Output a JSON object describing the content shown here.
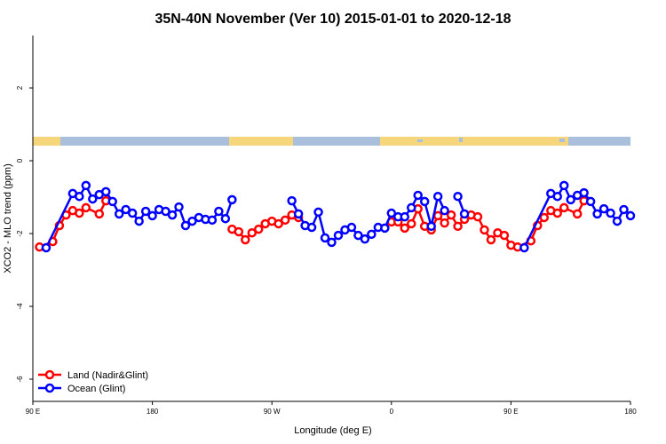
{
  "chart_data": {
    "type": "line",
    "title": "35N-40N November (Ver 10)   2015-01-01 to 2020-12-18",
    "x_label": "Longitude (deg E)",
    "y_label": "XCO2 - MLO trend (ppm)",
    "xlim": [
      90,
      540
    ],
    "xticks": [
      {
        "value": 90,
        "label": "90 E"
      },
      180,
      {
        "value": 270,
        "label": "90 W"
      },
      {
        "value": 360,
        "label": "0"
      },
      {
        "value": 450,
        "label": "90 E"
      },
      {
        "value": 540,
        "label": "180"
      }
    ],
    "ylim": [
      -6.61,
      3.44
    ],
    "yticks": [
      -6,
      -4,
      -2,
      0,
      2
    ],
    "legend": "bottom-left",
    "series": [
      {
        "name": "Land (Nadir&Glint)",
        "color": "#ff0000",
        "x": [
          95,
          105,
          110,
          115,
          120,
          125,
          130,
          140,
          145,
          150,
          240,
          245,
          250,
          255,
          260,
          265,
          270,
          275,
          280,
          285,
          290,
          295,
          360,
          365,
          370,
          375,
          380,
          385,
          390,
          395,
          400,
          405,
          410,
          415,
          420,
          425,
          430,
          435,
          440,
          445,
          450,
          455,
          465,
          470,
          475,
          480,
          485,
          490,
          500,
          505
        ],
        "values": [
          -2.37,
          -2.22,
          -1.78,
          -1.49,
          -1.37,
          -1.44,
          -1.29,
          -1.46,
          -1.1,
          null,
          -1.88,
          -1.95,
          -2.17,
          -1.98,
          -1.88,
          -1.73,
          -1.66,
          -1.73,
          -1.63,
          -1.49,
          -1.56,
          null,
          -1.68,
          -1.68,
          -1.85,
          -1.73,
          -1.32,
          -1.8,
          -1.9,
          -1.51,
          -1.71,
          -1.49,
          -1.8,
          -1.61,
          -1.49,
          -1.54,
          -1.9,
          -2.17,
          -1.98,
          -2.05,
          -2.32,
          -2.37,
          -2.2,
          -1.78,
          -1.56,
          -1.37,
          -1.44,
          -1.29,
          -1.46,
          -1.1
        ]
      },
      {
        "name": "Ocean (Glint)",
        "color": "#0000ff",
        "x": [
          100,
          120,
          125,
          130,
          135,
          140,
          145,
          150,
          155,
          160,
          165,
          170,
          175,
          180,
          185,
          190,
          195,
          200,
          205,
          210,
          215,
          220,
          225,
          230,
          235,
          240,
          245,
          285,
          290,
          295,
          300,
          305,
          310,
          315,
          320,
          325,
          330,
          335,
          340,
          345,
          350,
          355,
          360,
          365,
          370,
          375,
          380,
          385,
          390,
          395,
          400,
          405,
          410,
          415,
          420,
          460,
          480,
          485,
          490,
          495,
          500,
          505,
          510,
          515,
          520,
          525,
          530,
          535,
          540
        ],
        "values": [
          -2.39,
          -0.9,
          -0.98,
          -0.68,
          -1.05,
          -0.93,
          -0.85,
          -1.12,
          -1.46,
          -1.34,
          -1.44,
          -1.66,
          -1.39,
          -1.51,
          -1.34,
          -1.39,
          -1.49,
          -1.27,
          -1.78,
          -1.66,
          -1.56,
          -1.61,
          -1.63,
          -1.39,
          -1.59,
          -1.07,
          null,
          -1.1,
          -1.46,
          -1.78,
          -1.83,
          -1.41,
          -2.12,
          -2.24,
          -2.05,
          -1.9,
          -1.83,
          -2.05,
          -2.15,
          -2.02,
          -1.83,
          -1.85,
          -1.44,
          -1.54,
          -1.54,
          -1.29,
          -0.95,
          -1.12,
          -1.8,
          -0.98,
          -1.37,
          null,
          -0.98,
          -1.46,
          null,
          -2.39,
          -0.9,
          -0.98,
          -0.68,
          -1.07,
          -0.95,
          -0.88,
          -1.12,
          -1.46,
          -1.32,
          -1.44,
          -1.66,
          -1.34,
          -1.51
        ]
      }
    ]
  }
}
